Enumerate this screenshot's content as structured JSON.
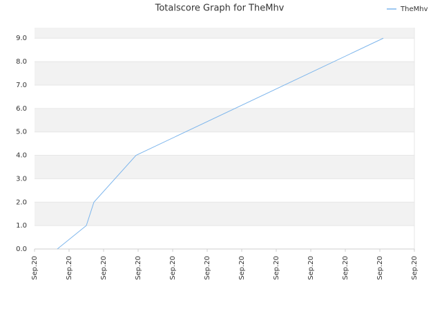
{
  "chart_data": {
    "type": "line",
    "title": "Totalscore Graph for TheMhv",
    "x": [
      0.66,
      1.5,
      1.72,
      2.94,
      10.1
    ],
    "series": [
      {
        "name": "TheMhv",
        "color": "#7cb5ec",
        "values": [
          0,
          1,
          2,
          4,
          9
        ]
      }
    ],
    "xlim": [
      0,
      11
    ],
    "xticks": [
      {
        "value": 0,
        "label": "Sep.20"
      },
      {
        "value": 1,
        "label": "Sep.20"
      },
      {
        "value": 2,
        "label": "Sep.20"
      },
      {
        "value": 3,
        "label": "Sep.20"
      },
      {
        "value": 4,
        "label": "Sep.20"
      },
      {
        "value": 5,
        "label": "Sep.20"
      },
      {
        "value": 6,
        "label": "Sep.20"
      },
      {
        "value": 7,
        "label": "Sep.20"
      },
      {
        "value": 8,
        "label": "Sep.20"
      },
      {
        "value": 9,
        "label": "Sep.20"
      },
      {
        "value": 10,
        "label": "Sep.20"
      },
      {
        "value": 11,
        "label": "Sep.20"
      }
    ],
    "ylim": [
      0,
      9.45
    ],
    "yticks": [
      {
        "value": 0,
        "label": "0.0"
      },
      {
        "value": 1,
        "label": "1.0"
      },
      {
        "value": 2,
        "label": "2.0"
      },
      {
        "value": 3,
        "label": "3.0"
      },
      {
        "value": 4,
        "label": "4.0"
      },
      {
        "value": 5,
        "label": "5.0"
      },
      {
        "value": 6,
        "label": "6.0"
      },
      {
        "value": 7,
        "label": "7.0"
      },
      {
        "value": 8,
        "label": "8.0"
      },
      {
        "value": 9,
        "label": "9.0"
      }
    ],
    "grid": true,
    "legend": "top-right"
  }
}
